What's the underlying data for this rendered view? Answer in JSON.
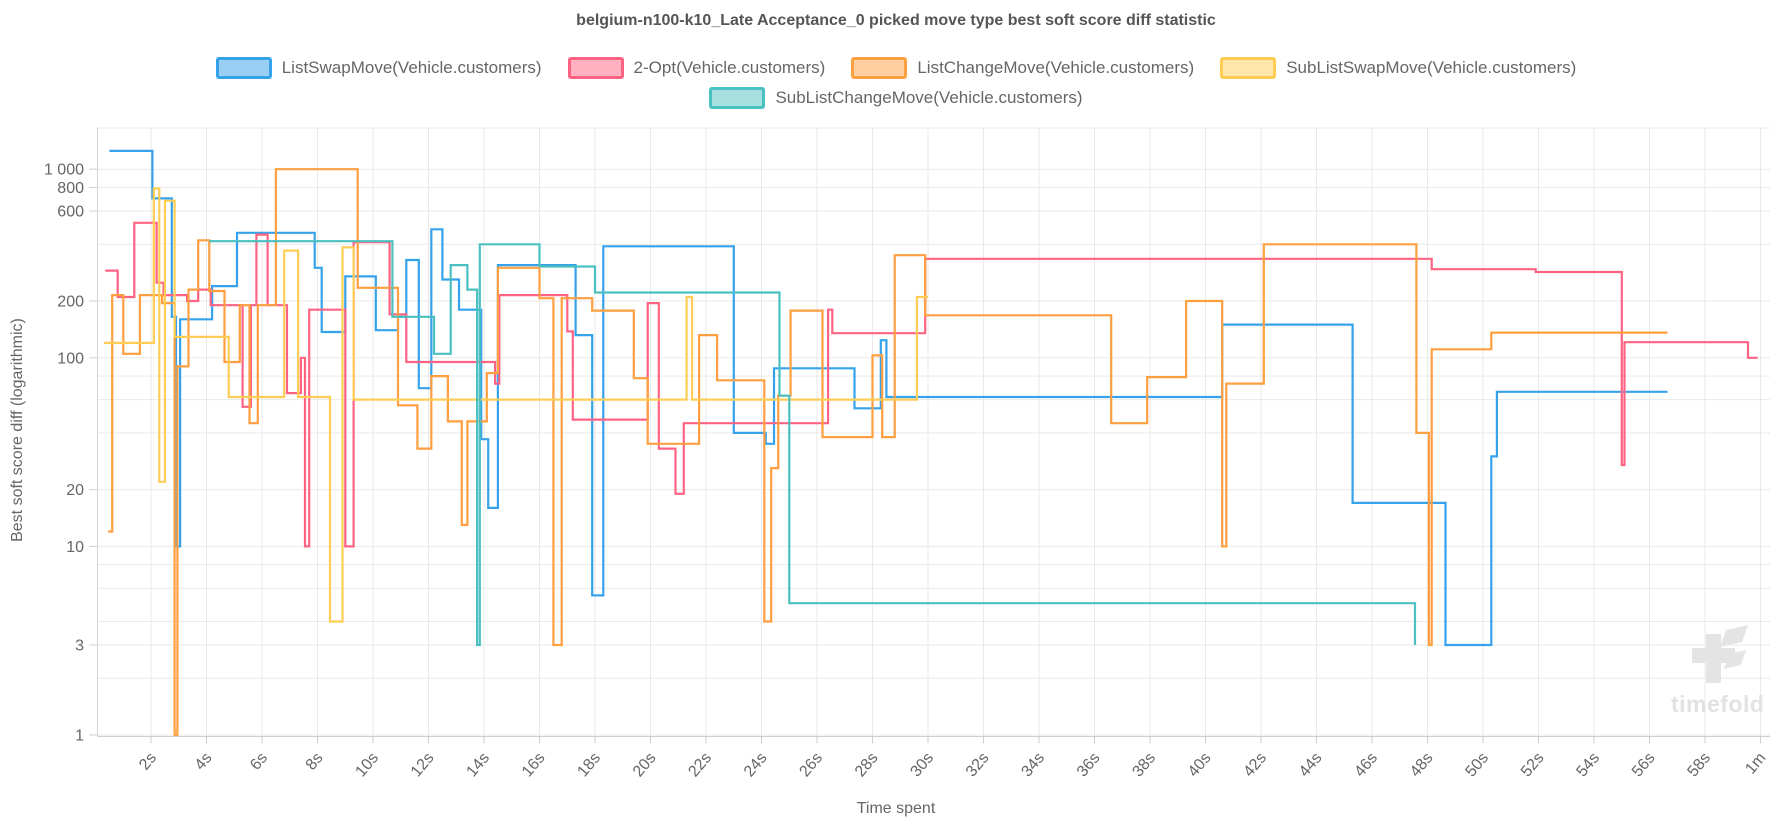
{
  "title": "belgium-n100-k10_Late Acceptance_0 picked move type best soft score diff statistic",
  "watermark": {
    "text": "timefold"
  },
  "chart_data": {
    "type": "line",
    "step_mode": "after",
    "title": "belgium-n100-k10_Late Acceptance_0 picked move type best soft score diff statistic",
    "x_axis": {
      "label": "Time spent",
      "unit": "seconds",
      "min": 0,
      "max": 61,
      "tick_values": [
        2,
        4,
        6,
        8,
        10,
        12,
        14,
        16,
        18,
        20,
        22,
        24,
        26,
        28,
        30,
        32,
        34,
        36,
        38,
        40,
        42,
        44,
        46,
        48,
        50,
        52,
        54,
        56,
        58,
        60
      ],
      "tick_labels": [
        "2s",
        "4s",
        "6s",
        "8s",
        "10s",
        "12s",
        "14s",
        "16s",
        "18s",
        "20s",
        "22s",
        "24s",
        "26s",
        "28s",
        "30s",
        "32s",
        "34s",
        "36s",
        "38s",
        "40s",
        "42s",
        "44s",
        "46s",
        "48s",
        "50s",
        "52s",
        "54s",
        "56s",
        "58s",
        "1m"
      ]
    },
    "y_axis": {
      "label": "Best soft score diff (logarithmic)",
      "scale": "log",
      "min": 1,
      "max": 1400,
      "labeled_ticks": [
        {
          "value": 1000,
          "label": "1 000"
        },
        {
          "value": 800,
          "label": "800"
        },
        {
          "value": 600,
          "label": "600"
        },
        {
          "value": 200,
          "label": "200"
        },
        {
          "value": 100,
          "label": "100"
        },
        {
          "value": 20,
          "label": "20"
        },
        {
          "value": 10,
          "label": "10"
        },
        {
          "value": 3,
          "label": "3"
        },
        {
          "value": 1,
          "label": "1"
        }
      ],
      "minor_gridlines": [
        2,
        4,
        6,
        8,
        40,
        60,
        80,
        400
      ]
    },
    "grid": true,
    "legend_position": "top",
    "series": [
      {
        "name": "ListSwapMove(Vehicle.customers)",
        "color": "#36A2EB",
        "legend_fill": "#9ACFF5",
        "points": [
          [
            0.5,
            1250
          ],
          [
            2.05,
            700
          ],
          [
            2.75,
            165
          ],
          [
            2.9,
            10
          ],
          [
            3.05,
            160
          ],
          [
            4.2,
            240
          ],
          [
            5.1,
            460
          ],
          [
            7.9,
            300
          ],
          [
            8.15,
            137
          ],
          [
            9.0,
            270
          ],
          [
            10.1,
            140
          ],
          [
            10.9,
            165
          ],
          [
            11.2,
            330
          ],
          [
            11.65,
            69
          ],
          [
            12.1,
            480
          ],
          [
            12.5,
            260
          ],
          [
            13.1,
            180
          ],
          [
            13.9,
            37
          ],
          [
            14.15,
            16
          ],
          [
            14.5,
            310
          ],
          [
            17.3,
            132
          ],
          [
            17.9,
            5.5
          ],
          [
            18.3,
            390
          ],
          [
            23.0,
            40
          ],
          [
            24.15,
            35
          ],
          [
            24.45,
            88
          ],
          [
            27.35,
            54
          ],
          [
            28.3,
            124
          ],
          [
            28.5,
            62
          ],
          [
            40.6,
            150
          ],
          [
            45.3,
            17
          ],
          [
            48.65,
            3
          ],
          [
            50.3,
            30
          ],
          [
            50.5,
            66
          ],
          [
            56.65,
            66
          ]
        ]
      },
      {
        "name": "2-Opt(Vehicle.customers)",
        "color": "#FF6384",
        "legend_fill": "#FFB1C1",
        "points": [
          [
            0.35,
            290
          ],
          [
            0.8,
            210
          ],
          [
            1.4,
            520
          ],
          [
            2.2,
            250
          ],
          [
            2.45,
            215
          ],
          [
            3.3,
            200
          ],
          [
            3.7,
            230
          ],
          [
            4.15,
            190
          ],
          [
            5.3,
            55
          ],
          [
            5.6,
            190
          ],
          [
            5.8,
            450
          ],
          [
            6.2,
            190
          ],
          [
            6.9,
            65
          ],
          [
            7.4,
            100
          ],
          [
            7.55,
            10
          ],
          [
            7.7,
            180
          ],
          [
            9.0,
            10
          ],
          [
            9.3,
            410
          ],
          [
            10.6,
            170
          ],
          [
            11.2,
            95
          ],
          [
            14.4,
            73
          ],
          [
            14.55,
            215
          ],
          [
            17.0,
            138
          ],
          [
            17.2,
            47
          ],
          [
            19.9,
            195
          ],
          [
            20.3,
            33
          ],
          [
            20.9,
            19
          ],
          [
            21.2,
            45
          ],
          [
            26.4,
            180
          ],
          [
            26.55,
            135
          ],
          [
            29.9,
            335
          ],
          [
            48.15,
            295
          ],
          [
            51.9,
            285
          ],
          [
            55.0,
            27
          ],
          [
            55.1,
            121
          ],
          [
            59.55,
            100
          ],
          [
            59.9,
            100
          ]
        ]
      },
      {
        "name": "ListChangeMove(Vehicle.customers)",
        "color": "#FF9F40",
        "legend_fill": "#FFCF9F",
        "points": [
          [
            0.45,
            12
          ],
          [
            0.6,
            215
          ],
          [
            1.0,
            105
          ],
          [
            1.6,
            215
          ],
          [
            2.4,
            195
          ],
          [
            2.85,
            1
          ],
          [
            2.95,
            90
          ],
          [
            3.35,
            230
          ],
          [
            3.7,
            420
          ],
          [
            4.1,
            226
          ],
          [
            4.65,
            95
          ],
          [
            5.2,
            190
          ],
          [
            5.55,
            45
          ],
          [
            5.85,
            190
          ],
          [
            6.5,
            1000
          ],
          [
            9.45,
            235
          ],
          [
            10.9,
            56
          ],
          [
            11.6,
            33
          ],
          [
            12.1,
            80
          ],
          [
            12.7,
            46
          ],
          [
            13.2,
            13
          ],
          [
            13.4,
            46
          ],
          [
            14.1,
            83
          ],
          [
            14.5,
            300
          ],
          [
            16.0,
            207
          ],
          [
            16.5,
            3
          ],
          [
            16.8,
            207
          ],
          [
            17.9,
            178
          ],
          [
            19.4,
            78
          ],
          [
            19.9,
            35
          ],
          [
            21.75,
            132
          ],
          [
            22.4,
            76
          ],
          [
            24.1,
            4
          ],
          [
            24.35,
            26
          ],
          [
            24.6,
            63
          ],
          [
            25.05,
            178
          ],
          [
            26.2,
            38
          ],
          [
            28.0,
            103
          ],
          [
            28.35,
            38
          ],
          [
            28.8,
            350
          ],
          [
            29.9,
            168
          ],
          [
            36.6,
            45
          ],
          [
            37.9,
            79
          ],
          [
            39.3,
            200
          ],
          [
            40.6,
            10
          ],
          [
            40.75,
            73
          ],
          [
            42.1,
            400
          ],
          [
            47.6,
            40
          ],
          [
            48.05,
            3
          ],
          [
            48.15,
            111
          ],
          [
            50.3,
            136
          ],
          [
            56.65,
            136
          ]
        ]
      },
      {
        "name": "SubListSwapMove(Vehicle.customers)",
        "color": "#FFCD56",
        "legend_fill": "#FFE6AA",
        "points": [
          [
            0.3,
            120
          ],
          [
            2.1,
            790
          ],
          [
            2.3,
            22
          ],
          [
            2.5,
            680
          ],
          [
            2.85,
            129
          ],
          [
            4.8,
            62
          ],
          [
            6.8,
            370
          ],
          [
            7.3,
            62
          ],
          [
            8.45,
            4
          ],
          [
            8.9,
            385
          ],
          [
            9.3,
            60
          ],
          [
            21.3,
            210
          ],
          [
            21.5,
            60
          ],
          [
            29.6,
            210
          ],
          [
            30.0,
            210
          ]
        ]
      },
      {
        "name": "SubListChangeMove(Vehicle.customers)",
        "color": "#4BC0C0",
        "legend_fill": "#A5DFDF",
        "points": [
          [
            4.1,
            415
          ],
          [
            10.7,
            165
          ],
          [
            12.2,
            105
          ],
          [
            12.8,
            310
          ],
          [
            13.4,
            230
          ],
          [
            13.75,
            3
          ],
          [
            13.85,
            400
          ],
          [
            16.0,
            305
          ],
          [
            18.0,
            222
          ],
          [
            24.65,
            63
          ],
          [
            25.0,
            5
          ],
          [
            47.55,
            3
          ]
        ]
      }
    ]
  }
}
